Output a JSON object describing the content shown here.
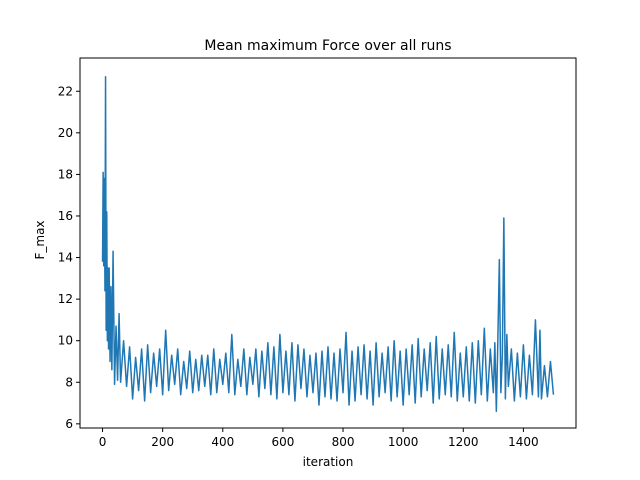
{
  "chart_data": {
    "type": "line",
    "title": "Mean maximum Force over all runs",
    "xlabel": "iteration",
    "ylabel": "F_max",
    "xlim": [
      -75,
      1575
    ],
    "ylim": [
      5.8,
      23.6
    ],
    "xticks": [
      0,
      200,
      400,
      600,
      800,
      1000,
      1200,
      1400
    ],
    "yticks": [
      6,
      8,
      10,
      12,
      14,
      16,
      18,
      20,
      22
    ],
    "grid": false,
    "legend": "none",
    "series": [
      {
        "color": "#1f77b4",
        "x": [
          0,
          2,
          4,
          6,
          8,
          10,
          12,
          14,
          16,
          18,
          20,
          22,
          25,
          28,
          31,
          35,
          40,
          45,
          50,
          55,
          60,
          70,
          80,
          90,
          100,
          110,
          120,
          130,
          140,
          150,
          160,
          170,
          180,
          190,
          200,
          210,
          220,
          230,
          240,
          250,
          260,
          270,
          280,
          290,
          300,
          310,
          320,
          330,
          340,
          350,
          360,
          370,
          380,
          390,
          400,
          410,
          420,
          430,
          440,
          450,
          460,
          470,
          480,
          490,
          500,
          510,
          520,
          530,
          540,
          550,
          560,
          570,
          580,
          590,
          600,
          610,
          620,
          630,
          640,
          650,
          660,
          670,
          680,
          690,
          700,
          710,
          720,
          730,
          740,
          750,
          760,
          770,
          780,
          790,
          800,
          810,
          820,
          830,
          840,
          850,
          860,
          870,
          880,
          890,
          900,
          910,
          920,
          930,
          940,
          950,
          960,
          970,
          980,
          990,
          1000,
          1010,
          1020,
          1030,
          1040,
          1050,
          1060,
          1070,
          1080,
          1090,
          1100,
          1110,
          1120,
          1130,
          1140,
          1150,
          1160,
          1170,
          1180,
          1190,
          1200,
          1210,
          1220,
          1230,
          1240,
          1250,
          1260,
          1270,
          1280,
          1290,
          1300,
          1305,
          1310,
          1315,
          1320,
          1325,
          1330,
          1335,
          1340,
          1345,
          1350,
          1360,
          1370,
          1380,
          1390,
          1400,
          1410,
          1420,
          1430,
          1440,
          1450,
          1455,
          1460,
          1470,
          1480,
          1490,
          1500
        ],
        "y": [
          13.8,
          18.1,
          13.6,
          17.8,
          12.4,
          22.7,
          10.5,
          16.2,
          10.0,
          13.5,
          9.6,
          13.5,
          9.0,
          12.6,
          8.6,
          14.3,
          7.9,
          10.7,
          8.1,
          11.3,
          8.0,
          10.0,
          7.8,
          9.7,
          7.2,
          9.2,
          7.6,
          9.6,
          7.1,
          9.8,
          7.5,
          9.4,
          7.8,
          9.6,
          7.4,
          10.5,
          7.6,
          9.3,
          7.9,
          9.6,
          7.4,
          9.0,
          7.7,
          9.5,
          7.5,
          9.1,
          7.6,
          9.3,
          7.8,
          9.3,
          7.4,
          9.6,
          7.5,
          9.1,
          7.9,
          9.4,
          7.5,
          10.3,
          7.4,
          9.1,
          7.8,
          9.6,
          7.4,
          9.2,
          7.9,
          9.6,
          7.3,
          9.5,
          7.7,
          9.9,
          7.4,
          9.7,
          7.2,
          10.3,
          7.5,
          9.5,
          7.4,
          9.9,
          7.1,
          9.8,
          7.7,
          9.6,
          7.3,
          9.3,
          7.5,
          9.4,
          6.9,
          9.5,
          7.3,
          9.7,
          7.2,
          9.4,
          7.1,
          9.6,
          7.5,
          10.4,
          6.9,
          9.5,
          7.1,
          9.7,
          7.4,
          9.8,
          7.2,
          9.5,
          6.9,
          9.9,
          7.3,
          9.4,
          7.5,
          9.7,
          7.1,
          10.0,
          7.3,
          9.5,
          6.9,
          9.6,
          7.4,
          9.8,
          7.0,
          10.1,
          7.3,
          9.6,
          7.6,
          9.9,
          7.0,
          10.2,
          7.2,
          9.6,
          7.4,
          9.8,
          7.3,
          10.4,
          7.1,
          9.4,
          7.3,
          9.7,
          7.1,
          9.9,
          7.0,
          10.0,
          7.4,
          10.6,
          7.1,
          9.6,
          7.5,
          9.9,
          6.6,
          10.0,
          13.9,
          7.5,
          9.3,
          15.9,
          7.2,
          10.3,
          7.8,
          9.6,
          7.1,
          9.4,
          7.3,
          9.8,
          7.2,
          9.3,
          7.4,
          11.0,
          7.3,
          10.5,
          7.2,
          8.8,
          7.3,
          9.0,
          7.4
        ]
      }
    ]
  }
}
